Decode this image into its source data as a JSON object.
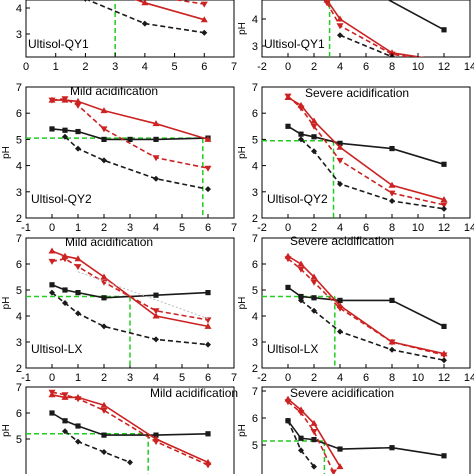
{
  "colors": {
    "black": "#1a1a1a",
    "red": "#cc2222",
    "green": "#22cc22",
    "grey": "#bbbbbb"
  },
  "chart_data": [
    {
      "type": "line",
      "panel": "row1-left",
      "xlim": [
        0,
        7
      ],
      "ylim": [
        2,
        5
      ],
      "xticks": [],
      "yticks": [
        "3",
        "4"
      ],
      "ylabel": "",
      "soil": "Ultisol-QY1",
      "condition": "",
      "ref_x": 3,
      "ref_y": null,
      "series": [
        {
          "color": "red",
          "dash": false,
          "marker": "triangle",
          "x": [
            3,
            4,
            6
          ],
          "y": [
            4.6,
            4.2,
            3.55
          ]
        },
        {
          "color": "red",
          "dash": true,
          "marker": "triangle",
          "x": [
            4,
            6
          ],
          "y": [
            4.5,
            4.15
          ]
        },
        {
          "color": "black",
          "dash": true,
          "marker": "diamond",
          "x": [
            2,
            4,
            6
          ],
          "y": [
            4.35,
            3.4,
            3.05
          ]
        }
      ]
    },
    {
      "type": "line",
      "panel": "row1-right",
      "xlim": [
        -2,
        14
      ],
      "ylim": [
        2,
        5
      ],
      "xticks": [],
      "yticks": [
        "3",
        "4"
      ],
      "ylabel": "pH",
      "soil": "Ultisol-QY1",
      "condition": "",
      "ref_x": 3.2,
      "ref_y": null,
      "series": [
        {
          "color": "black",
          "dash": false,
          "marker": "square",
          "x": [
            7,
            12
          ],
          "y": [
            4.9,
            3.6
          ]
        },
        {
          "color": "red",
          "dash": false,
          "marker": "triangle",
          "x": [
            3,
            4,
            8,
            12
          ],
          "y": [
            4.7,
            4.0,
            2.75,
            2.45
          ]
        },
        {
          "color": "red",
          "dash": true,
          "marker": "triangle",
          "x": [
            3,
            4,
            8,
            12
          ],
          "y": [
            4.6,
            3.75,
            2.7,
            2.35
          ]
        },
        {
          "color": "black",
          "dash": true,
          "marker": "diamond",
          "x": [
            4,
            8,
            12
          ],
          "y": [
            3.4,
            2.6,
            2.25
          ]
        }
      ]
    },
    {
      "type": "line",
      "panel": "row2-left",
      "xlim": [
        -1,
        7
      ],
      "ylim": [
        2,
        7
      ],
      "xticks": [
        "-1",
        "0",
        "1",
        "2",
        "3",
        "4",
        "5",
        "6",
        "7"
      ],
      "yticks": [
        "2",
        "3",
        "4",
        "5",
        "6",
        "7"
      ],
      "ylabel": "pH",
      "soil": "Ultisol-QY2",
      "condition": "Mild acidification",
      "ref_x": 5.8,
      "ref_y": 5.05,
      "series": [
        {
          "color": "black",
          "dash": false,
          "marker": "square",
          "x": [
            0,
            0.5,
            1,
            2,
            3,
            4,
            6
          ],
          "y": [
            5.4,
            5.35,
            5.3,
            5.0,
            5.0,
            5.0,
            5.05
          ]
        },
        {
          "color": "red",
          "dash": false,
          "marker": "triangle",
          "x": [
            0,
            0.5,
            1,
            2,
            4,
            6
          ],
          "y": [
            6.5,
            6.5,
            6.45,
            6.1,
            5.6,
            5.0
          ]
        },
        {
          "color": "red",
          "dash": true,
          "marker": "triangle",
          "x": [
            0,
            0.5,
            1,
            2,
            4,
            6
          ],
          "y": [
            6.5,
            6.55,
            6.3,
            5.4,
            4.3,
            3.9
          ]
        },
        {
          "color": "black",
          "dash": true,
          "marker": "diamond",
          "x": [
            0.5,
            1,
            2,
            4,
            6
          ],
          "y": [
            5.1,
            4.65,
            4.2,
            3.5,
            3.1
          ]
        }
      ]
    },
    {
      "type": "line",
      "panel": "row2-right",
      "xlim": [
        -2,
        14
      ],
      "ylim": [
        2,
        7
      ],
      "xticks": [
        "-2",
        "0",
        "2",
        "4",
        "6",
        "8",
        "10",
        "12",
        "14"
      ],
      "yticks": [
        "2",
        "3",
        "4",
        "5",
        "6",
        "7"
      ],
      "ylabel": "pH",
      "soil": "Ultisol-QY2",
      "condition": "Severe acidification",
      "ref_x": 3.5,
      "ref_y": 4.95,
      "series": [
        {
          "color": "black",
          "dash": false,
          "marker": "square",
          "x": [
            0,
            1,
            2,
            4,
            8,
            12
          ],
          "y": [
            5.5,
            5.2,
            5.1,
            4.85,
            4.65,
            4.05
          ]
        },
        {
          "color": "red",
          "dash": false,
          "marker": "triangle",
          "x": [
            0,
            1,
            2,
            4,
            8,
            12
          ],
          "y": [
            6.6,
            6.3,
            5.7,
            4.7,
            3.25,
            2.7
          ]
        },
        {
          "color": "red",
          "dash": true,
          "marker": "triangle",
          "x": [
            0,
            1,
            2,
            4,
            8,
            12
          ],
          "y": [
            6.65,
            6.2,
            5.5,
            4.2,
            2.95,
            2.5
          ]
        },
        {
          "color": "black",
          "dash": true,
          "marker": "diamond",
          "x": [
            1,
            2,
            4,
            8,
            12
          ],
          "y": [
            5.0,
            4.55,
            3.3,
            2.65,
            2.35
          ]
        }
      ]
    },
    {
      "type": "line",
      "panel": "row3-left",
      "xlim": [
        -1,
        7
      ],
      "ylim": [
        2,
        7
      ],
      "xticks": [
        "-1",
        "0",
        "1",
        "2",
        "3",
        "4",
        "5",
        "6",
        "7"
      ],
      "yticks": [
        "2",
        "3",
        "4",
        "5",
        "6",
        "7"
      ],
      "ylabel": "pH",
      "soil": "Ultisol-LX",
      "condition": "Mild acidification",
      "ref_x": 3,
      "ref_y": 4.75,
      "series": [
        {
          "color": "black",
          "dash": false,
          "marker": "square",
          "x": [
            0,
            0.5,
            1,
            2,
            4,
            6
          ],
          "y": [
            5.2,
            5.0,
            4.9,
            4.7,
            4.8,
            4.9
          ]
        },
        {
          "color": "red",
          "dash": false,
          "marker": "triangle",
          "x": [
            0,
            0.5,
            1,
            2,
            4,
            6
          ],
          "y": [
            6.5,
            6.3,
            6.2,
            5.5,
            4.0,
            3.6
          ]
        },
        {
          "color": "red",
          "dash": true,
          "marker": "triangle",
          "x": [
            0,
            0.5,
            1,
            2,
            4,
            6
          ],
          "y": [
            6.1,
            6.2,
            5.9,
            5.3,
            4.2,
            3.85
          ]
        },
        {
          "color": "black",
          "dash": true,
          "marker": "diamond",
          "x": [
            0,
            0.5,
            1,
            2,
            4,
            6
          ],
          "y": [
            4.9,
            4.5,
            4.1,
            3.6,
            3.1,
            2.9
          ]
        },
        {
          "color": "grey",
          "dash": true,
          "marker": "none",
          "x": [
            1,
            6
          ],
          "y": [
            5.7,
            3.9
          ]
        }
      ]
    },
    {
      "type": "line",
      "panel": "row3-right",
      "xlim": [
        -2,
        14
      ],
      "ylim": [
        2,
        7
      ],
      "xticks": [
        "-2",
        "0",
        "2",
        "4",
        "6",
        "8",
        "10",
        "12",
        "14"
      ],
      "yticks": [
        "2",
        "3",
        "4",
        "5",
        "6",
        "7"
      ],
      "ylabel": "pH",
      "soil": "Ultisol-LX",
      "condition": "Severe acidification",
      "ref_x": 3.6,
      "ref_y": 4.75,
      "series": [
        {
          "color": "black",
          "dash": false,
          "marker": "square",
          "x": [
            0,
            1,
            2,
            4,
            8,
            12
          ],
          "y": [
            5.1,
            4.75,
            4.7,
            4.6,
            4.6,
            3.6
          ]
        },
        {
          "color": "red",
          "dash": false,
          "marker": "triangle",
          "x": [
            0,
            1,
            2,
            4,
            8,
            12
          ],
          "y": [
            6.3,
            6.0,
            5.5,
            4.4,
            3.0,
            2.55
          ]
        },
        {
          "color": "red",
          "dash": true,
          "marker": "triangle",
          "x": [
            0,
            1,
            2,
            4,
            8,
            12
          ],
          "y": [
            6.2,
            5.8,
            5.3,
            4.3,
            3.0,
            2.5
          ]
        },
        {
          "color": "black",
          "dash": true,
          "marker": "diamond",
          "x": [
            1,
            2,
            4,
            8,
            12
          ],
          "y": [
            4.6,
            4.2,
            3.4,
            2.7,
            2.3
          ]
        }
      ]
    },
    {
      "type": "line",
      "panel": "row4-left",
      "xlim": [
        -1,
        7
      ],
      "ylim": [
        4,
        7
      ],
      "xticks": [],
      "yticks": [
        "5",
        "6",
        "7"
      ],
      "ylabel": "pH",
      "soil": "",
      "condition": "Mild acidification",
      "ref_x": 3.7,
      "ref_y": 5.2,
      "series": [
        {
          "color": "black",
          "dash": false,
          "marker": "square",
          "x": [
            0,
            0.5,
            1,
            2,
            4,
            6
          ],
          "y": [
            6.0,
            5.7,
            5.5,
            5.15,
            5.15,
            5.2
          ]
        },
        {
          "color": "red",
          "dash": false,
          "marker": "triangle",
          "x": [
            0,
            0.5,
            1,
            2,
            4,
            6
          ],
          "y": [
            6.7,
            6.6,
            6.6,
            6.3,
            5.0,
            4.1
          ]
        },
        {
          "color": "red",
          "dash": true,
          "marker": "triangle",
          "x": [
            0,
            0.5,
            1,
            2,
            4,
            6
          ],
          "y": [
            6.8,
            6.7,
            6.55,
            6.1,
            4.9,
            4.0
          ]
        },
        {
          "color": "black",
          "dash": true,
          "marker": "diamond",
          "x": [
            0.5,
            1,
            2,
            3
          ],
          "y": [
            5.3,
            4.9,
            4.5,
            4.1
          ]
        }
      ]
    },
    {
      "type": "line",
      "panel": "row4-right",
      "xlim": [
        -2,
        14
      ],
      "ylim": [
        4,
        7
      ],
      "xticks": [],
      "yticks": [
        "5",
        "6",
        "7"
      ],
      "ylabel": "pH",
      "soil": "",
      "condition": "Severe acidification",
      "ref_x": 2.8,
      "ref_y": 5.15,
      "series": [
        {
          "color": "black",
          "dash": false,
          "marker": "square",
          "x": [
            0,
            1,
            2,
            4,
            8,
            12
          ],
          "y": [
            5.9,
            5.25,
            5.2,
            4.85,
            4.9,
            4.6
          ]
        },
        {
          "color": "red",
          "dash": false,
          "marker": "triangle",
          "x": [
            0,
            1,
            2,
            4
          ],
          "y": [
            6.7,
            6.3,
            5.8,
            4.2
          ]
        },
        {
          "color": "red",
          "dash": true,
          "marker": "triangle",
          "x": [
            0,
            1,
            2,
            3.5
          ],
          "y": [
            6.6,
            6.2,
            5.5,
            4.0
          ]
        },
        {
          "color": "black",
          "dash": true,
          "marker": "diamond",
          "x": [
            0,
            1,
            2
          ],
          "y": [
            5.9,
            4.8,
            4.2
          ]
        }
      ]
    }
  ]
}
